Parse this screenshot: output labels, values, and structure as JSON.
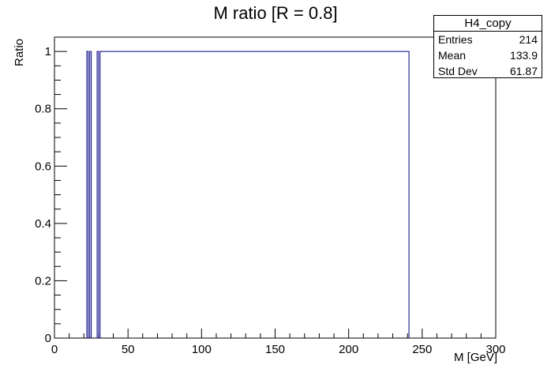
{
  "chart_data": {
    "type": "histogram",
    "title": "M ratio [R = 0.8]",
    "xlabel": "M [GeV]",
    "ylabel": "Ratio",
    "xlim": [
      0,
      300
    ],
    "ylim": [
      0,
      1.05
    ],
    "x_ticks": [
      0,
      50,
      100,
      150,
      200,
      250,
      300
    ],
    "y_ticks": [
      0,
      0.2,
      0.4,
      0.6,
      0.8,
      1
    ],
    "x_tick_labels": [
      "0",
      "50",
      "100",
      "150",
      "200",
      "250",
      "300"
    ],
    "y_tick_labels": [
      "0",
      "0.2",
      "0.4",
      "0.6",
      "0.8",
      "1"
    ],
    "bins": [
      {
        "x0": 22,
        "x1": 23,
        "value": 1
      },
      {
        "x0": 24,
        "x1": 25,
        "value": 1
      },
      {
        "x0": 29,
        "x1": 30,
        "value": 1
      },
      {
        "x0": 31,
        "x1": 241,
        "value": 1
      }
    ],
    "line_color": "#000080",
    "stats": {
      "name": "H4_copy",
      "rows": [
        {
          "label": "Entries",
          "value": "214"
        },
        {
          "label": "Mean",
          "value": "133.9"
        },
        {
          "label": "Std Dev",
          "value": "61.87"
        }
      ]
    }
  }
}
